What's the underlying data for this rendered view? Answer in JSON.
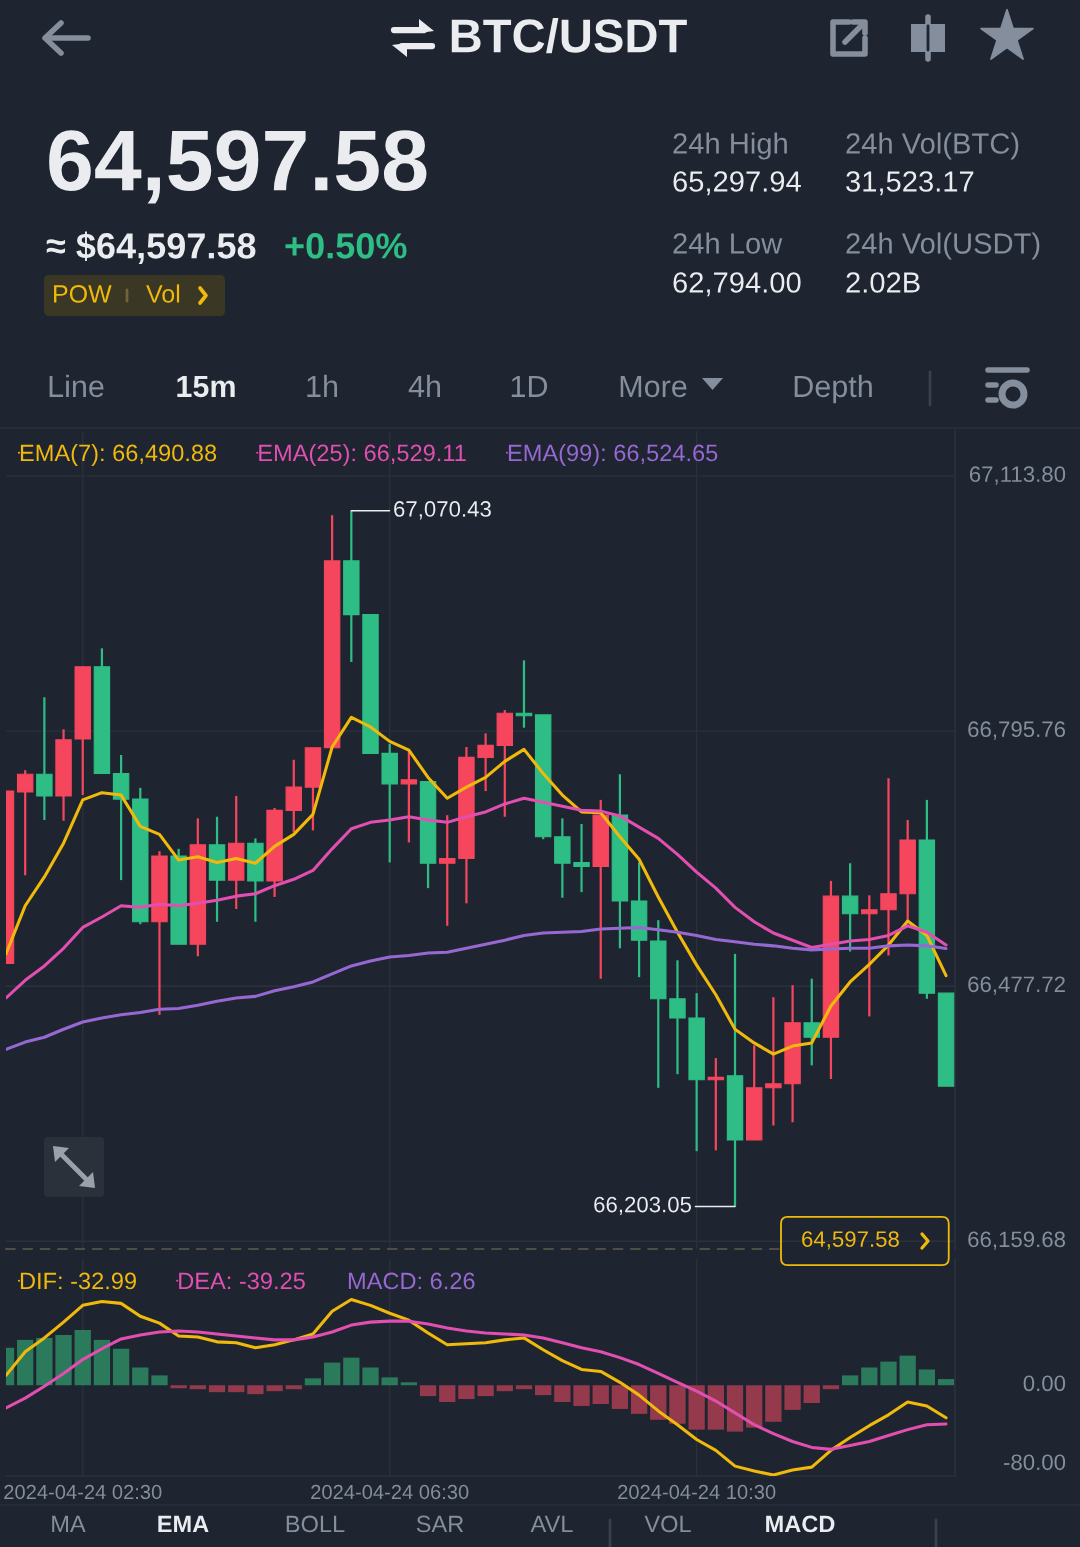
{
  "chart_data": [
    {
      "type": "other",
      "title": "BTC/USDT",
      "annotations": [
        "64,597.58",
        "≈ $64,597.58",
        "+0.50%",
        "POW",
        "Vol",
        "24h High",
        "65,297.94",
        "24h Vol(BTC)",
        "31,523.17",
        "24h Low",
        "62,794.00",
        "24h Vol(USDT)",
        "2.02B",
        "Line",
        "15m",
        "1h",
        "4h",
        "1D",
        "More",
        "Depth"
      ]
    },
    {
      "type": "candlestick",
      "x": [
        "2024-04-24T01:30",
        "2024-04-24T01:45",
        "2024-04-24T02:00",
        "2024-04-24T02:15",
        "2024-04-24T02:30",
        "2024-04-24T02:45",
        "2024-04-24T03:00",
        "2024-04-24T03:15",
        "2024-04-24T03:30",
        "2024-04-24T03:45",
        "2024-04-24T04:00",
        "2024-04-24T04:15",
        "2024-04-24T04:30",
        "2024-04-24T04:45",
        "2024-04-24T05:00",
        "2024-04-24T05:15",
        "2024-04-24T05:30",
        "2024-04-24T05:45",
        "2024-04-24T06:00",
        "2024-04-24T06:15",
        "2024-04-24T06:30",
        "2024-04-24T06:45",
        "2024-04-24T07:00",
        "2024-04-24T07:15",
        "2024-04-24T07:30",
        "2024-04-24T07:45",
        "2024-04-24T08:00",
        "2024-04-24T08:15",
        "2024-04-24T08:30",
        "2024-04-24T08:45",
        "2024-04-24T09:00",
        "2024-04-24T09:15",
        "2024-04-24T09:30",
        "2024-04-24T09:45",
        "2024-04-24T10:00",
        "2024-04-24T10:15",
        "2024-04-24T10:30",
        "2024-04-24T10:45",
        "2024-04-24T11:00",
        "2024-04-24T11:15",
        "2024-04-24T11:30",
        "2024-04-24T11:45",
        "2024-04-24T12:00",
        "2024-04-24T12:15",
        "2024-04-24T12:30",
        "2024-04-24T12:45",
        "2024-04-24T13:00",
        "2024-04-24T13:15",
        "2024-04-24T13:30",
        "2024-04-24T13:45"
      ],
      "ohlc": [
        [
          66506,
          66721,
          66506,
          66721
        ],
        [
          66720,
          66747,
          66616,
          66742
        ],
        [
          66742,
          66838,
          66685,
          66715
        ],
        [
          66715,
          66798,
          66684,
          66785
        ],
        [
          66786,
          66876,
          66716,
          66876
        ],
        [
          66876,
          66899,
          66743,
          66743
        ],
        [
          66743,
          66766,
          66610,
          66711
        ],
        [
          66711,
          66725,
          66555,
          66558
        ],
        [
          66558,
          66646,
          66442,
          66640
        ],
        [
          66640,
          66649,
          66530,
          66530
        ],
        [
          66530,
          66687,
          66515,
          66654
        ],
        [
          66654,
          66689,
          66558,
          66610
        ],
        [
          66610,
          66715,
          66574,
          66656
        ],
        [
          66656,
          66662,
          66558,
          66609
        ],
        [
          66609,
          66700,
          66589,
          66697
        ],
        [
          66697,
          66760,
          66670,
          66726
        ],
        [
          66726,
          66775,
          66672,
          66775
        ],
        [
          66775,
          67065,
          66775,
          67008
        ],
        [
          67008,
          67070.43,
          66882,
          66941
        ],
        [
          66941,
          66941,
          66768,
          66768
        ],
        [
          66768,
          66780,
          66632,
          66730
        ],
        [
          66730,
          66772,
          66657,
          66735
        ],
        [
          66733,
          66733,
          66600,
          66631
        ],
        [
          66631,
          66691,
          66553,
          66637
        ],
        [
          66637,
          66776,
          66581,
          66763
        ],
        [
          66763,
          66793,
          66721,
          66778
        ],
        [
          66778,
          66822,
          66689,
          66818
        ],
        [
          66818,
          66884,
          66800,
          66815
        ],
        [
          66816,
          66816,
          66661,
          66664
        ],
        [
          66664,
          66687,
          66588,
          66631
        ],
        [
          66632,
          66680,
          66595,
          66627
        ],
        [
          66627,
          66710,
          66487,
          66691
        ],
        [
          66691,
          66742,
          66525,
          66584
        ],
        [
          66584,
          66632,
          66489,
          66535
        ],
        [
          66534,
          66560,
          66351,
          66462
        ],
        [
          66462,
          66510,
          66368,
          66438
        ],
        [
          66438,
          66469,
          66272,
          66361
        ],
        [
          66361,
          66388,
          66273,
          66364
        ],
        [
          66366,
          66518,
          66203.05,
          66286
        ],
        [
          66286,
          66404,
          66286,
          66351
        ],
        [
          66351,
          66464,
          66304,
          66356
        ],
        [
          66356,
          66479,
          66308,
          66432
        ],
        [
          66432,
          66487,
          66379,
          66414
        ],
        [
          66414,
          66609,
          66362,
          66590
        ],
        [
          66590,
          66631,
          66521,
          66568
        ],
        [
          66568,
          66591,
          66440,
          66573
        ],
        [
          66573,
          66737,
          66516,
          66593
        ],
        [
          66593,
          66685,
          66559,
          66660
        ],
        [
          66660,
          66710,
          66462,
          66469
        ],
        [
          66469,
          66469,
          66353,
          66353
        ]
      ],
      "colors": [
        "#f6465d",
        "#f6465d",
        "#2ebd85",
        "#f6465d",
        "#f6465d",
        "#2ebd85",
        "#2ebd85",
        "#2ebd85",
        "#f6465d",
        "#2ebd85",
        "#f6465d",
        "#2ebd85",
        "#f6465d",
        "#2ebd85",
        "#f6465d",
        "#f6465d",
        "#f6465d",
        "#f6465d",
        "#2ebd85",
        "#2ebd85",
        "#2ebd85",
        "#f6465d",
        "#2ebd85",
        "#f6465d",
        "#f6465d",
        "#f6465d",
        "#f6465d",
        "#2ebd85",
        "#2ebd85",
        "#2ebd85",
        "#2ebd85",
        "#f6465d",
        "#2ebd85",
        "#2ebd85",
        "#2ebd85",
        "#2ebd85",
        "#2ebd85",
        "#f6465d",
        "#2ebd85",
        "#f6465d",
        "#f6465d",
        "#f6465d",
        "#2ebd85",
        "#f6465d",
        "#2ebd85",
        "#f6465d",
        "#f6465d",
        "#f6465d",
        "#2ebd85",
        "#2ebd85"
      ],
      "series": [
        {
          "name": "EMA(7): 66,490.88",
          "type": "line",
          "color": "#f0b90b",
          "values": [
            66518,
            66578,
            66614,
            66656,
            66710,
            66719,
            66716,
            66677,
            66667,
            66635,
            66639,
            66632,
            66637,
            66631,
            66652,
            66667,
            66692,
            66776,
            66813,
            66801,
            66783,
            66772,
            66738,
            66712,
            66726,
            66738,
            66758,
            66773,
            66743,
            66716,
            66695,
            66694,
            66664,
            66636,
            66589,
            66545,
            66504,
            66467,
            66424,
            66407,
            66393,
            66403,
            66407,
            66453,
            66483,
            66505,
            66529,
            66559,
            66541,
            66490.88
          ]
        },
        {
          "name": "EMA(25): 66,529.11",
          "type": "line",
          "color": "#e24fb0",
          "values": [
            66463,
            66485,
            66503,
            66525,
            66551,
            66564,
            66578,
            66576,
            66580,
            66578,
            66581,
            66585,
            66590,
            66593,
            66603,
            66611,
            66622,
            66649,
            66674,
            66682,
            66685,
            66689,
            66685,
            66682,
            66689,
            66695,
            66705,
            66712,
            66707,
            66702,
            66697,
            66696,
            66690,
            66676,
            66662,
            66642,
            66620,
            66600,
            66576,
            66558,
            66544,
            66535,
            66526,
            66530,
            66534,
            66536,
            66541,
            66553,
            66545,
            66529.11
          ]
        },
        {
          "name": "EMA(99): 66,524.65",
          "type": "line",
          "color": "#9768d1",
          "values": [
            66399,
            66408,
            66414,
            66424,
            66433,
            66438,
            66442,
            66445,
            66449,
            66450,
            66454,
            66459,
            66463,
            66465,
            66472,
            66477,
            66483,
            66493,
            66503,
            66509,
            66514,
            66516,
            66519,
            66520,
            66525,
            66530,
            66535,
            66541,
            66544,
            66545,
            66546,
            66549,
            66550,
            66551,
            66548,
            66545,
            66541,
            66536,
            66533,
            66530,
            66528,
            66525,
            66523,
            66524,
            66525,
            66525,
            66528,
            66529,
            66528,
            66524.65
          ]
        }
      ],
      "xlim": [
        "2024-04-24T01:30",
        "2024-04-24T13:52"
      ],
      "xticks": [
        {
          "value": "2024-04-24T02:30",
          "label": null
        },
        {
          "value": "2024-04-24T06:30",
          "label": null
        },
        {
          "value": "2024-04-24T10:30",
          "label": null
        }
      ],
      "ylim": [
        66150,
        67170
      ],
      "yticks": [
        {
          "value": 66159.68,
          "label": "66,159.68"
        },
        {
          "value": 66477.72,
          "label": "66,477.72"
        },
        {
          "value": 66795.76,
          "label": "66,795.76"
        },
        {
          "value": 67113.8,
          "label": "67,113.80"
        }
      ],
      "tick_labels": "y",
      "grid": true,
      "legend": "top left",
      "annotations": [
        {
          "text": "67,070.43",
          "x": "2024-04-24T06:00",
          "y": 67070.43
        },
        {
          "text": "66,203.05",
          "x": "2024-04-24T11:00",
          "y": 66203.05
        },
        "64,597.58"
      ]
    },
    {
      "type": "bar",
      "x": [
        "2024-04-24T01:30",
        "2024-04-24T01:45",
        "2024-04-24T02:00",
        "2024-04-24T02:15",
        "2024-04-24T02:30",
        "2024-04-24T02:45",
        "2024-04-24T03:00",
        "2024-04-24T03:15",
        "2024-04-24T03:30",
        "2024-04-24T03:45",
        "2024-04-24T04:00",
        "2024-04-24T04:15",
        "2024-04-24T04:30",
        "2024-04-24T04:45",
        "2024-04-24T05:00",
        "2024-04-24T05:15",
        "2024-04-24T05:30",
        "2024-04-24T05:45",
        "2024-04-24T06:00",
        "2024-04-24T06:15",
        "2024-04-24T06:30",
        "2024-04-24T06:45",
        "2024-04-24T07:00",
        "2024-04-24T07:15",
        "2024-04-24T07:30",
        "2024-04-24T07:45",
        "2024-04-24T08:00",
        "2024-04-24T08:15",
        "2024-04-24T08:30",
        "2024-04-24T08:45",
        "2024-04-24T09:00",
        "2024-04-24T09:15",
        "2024-04-24T09:30",
        "2024-04-24T09:45",
        "2024-04-24T10:00",
        "2024-04-24T10:15",
        "2024-04-24T10:30",
        "2024-04-24T10:45",
        "2024-04-24T11:00",
        "2024-04-24T11:15",
        "2024-04-24T11:30",
        "2024-04-24T11:45",
        "2024-04-24T12:00",
        "2024-04-24T12:15",
        "2024-04-24T12:30",
        "2024-04-24T12:45",
        "2024-04-24T13:00",
        "2024-04-24T13:15",
        "2024-04-24T13:30",
        "2024-04-24T13:45"
      ],
      "series": [
        {
          "name": "DIF: -32.99",
          "type": "line",
          "color": "#f0b90b",
          "values": [
            10,
            34,
            48,
            64,
            81,
            85,
            83,
            70,
            63,
            50,
            49,
            44,
            43,
            38,
            41,
            46,
            52,
            75,
            87,
            81,
            73,
            66,
            53,
            41,
            42,
            43,
            46,
            48,
            36,
            25,
            16,
            14,
            3,
            -10,
            -26,
            -40,
            -55,
            -66,
            -82,
            -87,
            -91,
            -86,
            -83,
            -66,
            -53,
            -41,
            -30,
            -17,
            -21,
            -32.99
          ]
        },
        {
          "name": "DEA: -39.25",
          "type": "line",
          "color": "#e24fb0",
          "values": [
            -23,
            -13,
            -1,
            12,
            26,
            37,
            47,
            51,
            54,
            55,
            54,
            52,
            50,
            48,
            46,
            46,
            49,
            54,
            61,
            64,
            65,
            65,
            62,
            58,
            55,
            53,
            52,
            51,
            48,
            43,
            38,
            34,
            28,
            21,
            12,
            3,
            -6,
            -16,
            -28,
            -40,
            -49,
            -57,
            -63,
            -65,
            -61,
            -57,
            -51,
            -45,
            -40,
            -39.25
          ]
        },
        {
          "type": "bar",
          "values": [
            38,
            46,
            48,
            51,
            56,
            46,
            37,
            18,
            10,
            -3,
            -4,
            -7,
            -7,
            -9,
            -6,
            -4,
            7,
            23,
            28,
            18,
            8,
            3,
            -11,
            -17,
            -14,
            -11,
            -6,
            -4,
            -10,
            -17,
            -21,
            -19,
            -24,
            -29,
            -35,
            -39,
            -45,
            -45,
            -47,
            -43,
            -37,
            -25,
            -18,
            -4,
            10,
            18,
            24,
            30,
            16,
            6.26
          ],
          "colors": [
            "#2b7a5c",
            "#2b7a5c",
            "#2b7a5c",
            "#2b7a5c",
            "#2b7a5c",
            "#2b7a5c",
            "#2b7a5c",
            "#2b7a5c",
            "#2b7a5c",
            "#953a4c",
            "#953a4c",
            "#953a4c",
            "#953a4c",
            "#953a4c",
            "#953a4c",
            "#953a4c",
            "#2b7a5c",
            "#2b7a5c",
            "#2b7a5c",
            "#2b7a5c",
            "#2b7a5c",
            "#2b7a5c",
            "#953a4c",
            "#953a4c",
            "#953a4c",
            "#953a4c",
            "#953a4c",
            "#953a4c",
            "#953a4c",
            "#953a4c",
            "#953a4c",
            "#953a4c",
            "#953a4c",
            "#953a4c",
            "#953a4c",
            "#953a4c",
            "#953a4c",
            "#953a4c",
            "#953a4c",
            "#953a4c",
            "#953a4c",
            "#953a4c",
            "#953a4c",
            "#953a4c",
            "#2b7a5c",
            "#2b7a5c",
            "#2b7a5c",
            "#2b7a5c",
            "#2b7a5c",
            "#2b7a5c"
          ]
        }
      ],
      "xlim": [
        "2024-04-24T01:30",
        "2024-04-24T13:52"
      ],
      "xticks": [
        {
          "value": "2024-04-24T02:30",
          "label": "2024-04-24 02:30"
        },
        {
          "value": "2024-04-24T06:30",
          "label": "2024-04-24 06:30"
        },
        {
          "value": "2024-04-24T10:30",
          "label": "2024-04-24 10:30"
        }
      ],
      "ylim": [
        -92,
        128
      ],
      "yticks": [
        {
          "value": -80,
          "label": "-80.00"
        },
        {
          "value": 0,
          "label": "0.00"
        }
      ],
      "grid": "x",
      "legend": "top left",
      "annotations": [
        "MACD: 6.26"
      ]
    },
    {
      "type": "other",
      "annotations": [
        "MA",
        "EMA",
        "BOLL",
        "SAR",
        "AVL",
        "VOL",
        "MACD"
      ]
    }
  ]
}
